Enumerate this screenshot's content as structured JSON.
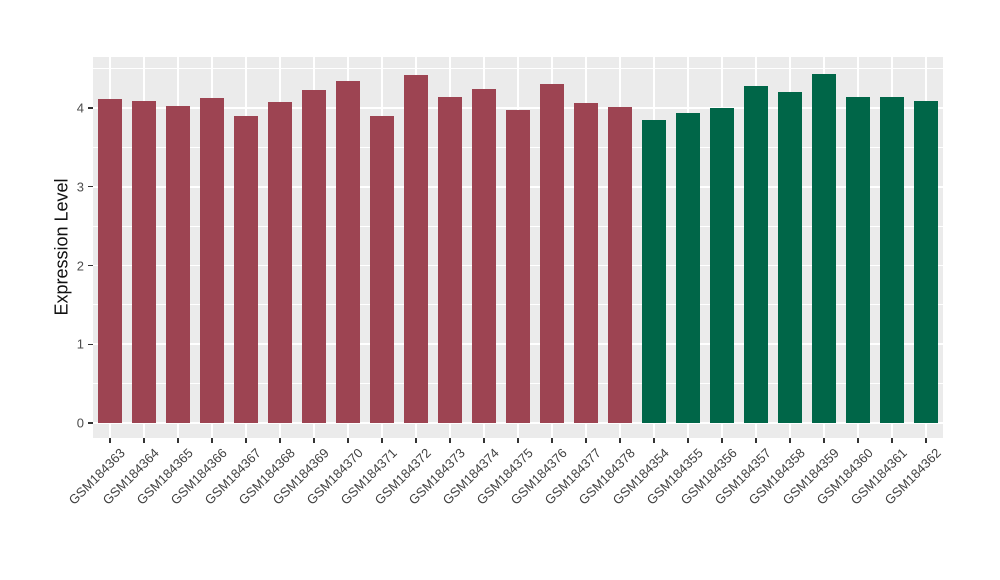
{
  "chart_data": {
    "type": "bar",
    "ylabel": "Expression Level",
    "ylim": [
      0,
      4.65
    ],
    "yticks": [
      "0",
      "1",
      "2",
      "3",
      "4"
    ],
    "grid": true,
    "legend": false,
    "panel_bg": "#EBEBEB",
    "grid_color": "#FFFFFF",
    "group_colors": {
      "maroon": "#9D4452",
      "green": "#006648"
    },
    "bars": [
      {
        "label": "GSM184363",
        "value": 4.11,
        "group": "maroon"
      },
      {
        "label": "GSM184364",
        "value": 4.09,
        "group": "maroon"
      },
      {
        "label": "GSM184365",
        "value": 4.02,
        "group": "maroon"
      },
      {
        "label": "GSM184366",
        "value": 4.13,
        "group": "maroon"
      },
      {
        "label": "GSM184367",
        "value": 3.9,
        "group": "maroon"
      },
      {
        "label": "GSM184368",
        "value": 4.07,
        "group": "maroon"
      },
      {
        "label": "GSM184369",
        "value": 4.23,
        "group": "maroon"
      },
      {
        "label": "GSM184370",
        "value": 4.34,
        "group": "maroon"
      },
      {
        "label": "GSM184371",
        "value": 3.9,
        "group": "maroon"
      },
      {
        "label": "GSM184372",
        "value": 4.42,
        "group": "maroon"
      },
      {
        "label": "GSM184373",
        "value": 4.14,
        "group": "maroon"
      },
      {
        "label": "GSM184374",
        "value": 4.24,
        "group": "maroon"
      },
      {
        "label": "GSM184375",
        "value": 3.97,
        "group": "maroon"
      },
      {
        "label": "GSM184376",
        "value": 4.3,
        "group": "maroon"
      },
      {
        "label": "GSM184377",
        "value": 4.06,
        "group": "maroon"
      },
      {
        "label": "GSM184378",
        "value": 4.01,
        "group": "maroon"
      },
      {
        "label": "GSM184354",
        "value": 3.85,
        "group": "green"
      },
      {
        "label": "GSM184355",
        "value": 3.94,
        "group": "green"
      },
      {
        "label": "GSM184356",
        "value": 4.0,
        "group": "green"
      },
      {
        "label": "GSM184357",
        "value": 4.28,
        "group": "green"
      },
      {
        "label": "GSM184358",
        "value": 4.2,
        "group": "green"
      },
      {
        "label": "GSM184359",
        "value": 4.43,
        "group": "green"
      },
      {
        "label": "GSM184360",
        "value": 4.14,
        "group": "green"
      },
      {
        "label": "GSM184361",
        "value": 4.14,
        "group": "green"
      },
      {
        "label": "GSM184362",
        "value": 4.09,
        "group": "green"
      }
    ]
  }
}
